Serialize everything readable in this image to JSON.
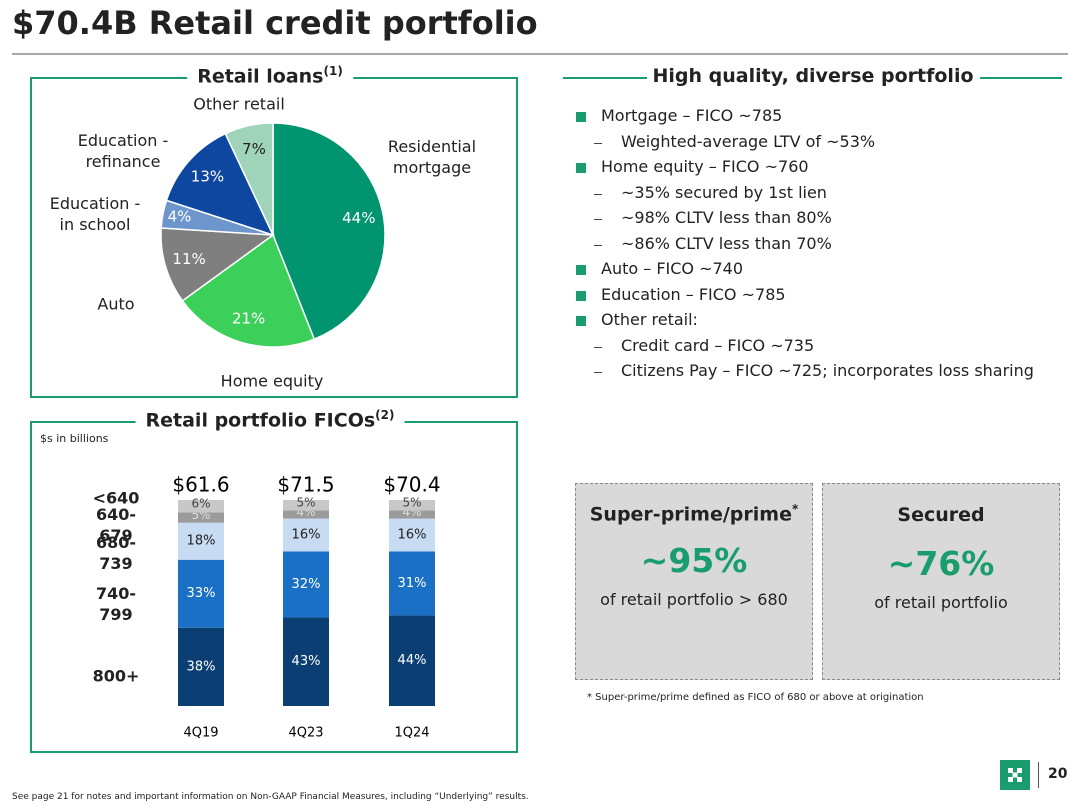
{
  "header": {
    "title": "$70.4B Retail credit portfolio"
  },
  "chart_data": [
    {
      "type": "pie",
      "title": "Retail loans",
      "title_note": "(1)",
      "categories": [
        "Residential mortgage",
        "Home equity",
        "Auto",
        "Education - in school",
        "Education - refinance",
        "Other retail"
      ],
      "values": [
        44,
        21,
        11,
        4,
        13,
        7
      ],
      "value_labels": [
        "44%",
        "21%",
        "11%",
        "4%",
        "13%",
        "7%"
      ],
      "colors": [
        "#00956e",
        "#3ccf5a",
        "#7f7f7f",
        "#6c96cc",
        "#0d479f",
        "#9fd4bb"
      ]
    },
    {
      "type": "stacked_bar",
      "title": "Retail portfolio FICOs",
      "title_note": "(2)",
      "subtitle": "$s in billions",
      "categories": [
        "4Q19",
        "4Q23",
        "1Q24"
      ],
      "totals": {
        "values": [
          61.6,
          71.5,
          70.4
        ],
        "value_labels": [
          "$61.6",
          "$71.5",
          "$70.4"
        ]
      },
      "series": [
        {
          "name": "800+",
          "color": "#0b3f73",
          "values": [
            38,
            43,
            44
          ],
          "value_labels": [
            "38%",
            "43%",
            "44%"
          ]
        },
        {
          "name": "740-799",
          "color": "#1a70c4",
          "values": [
            33,
            32,
            31
          ],
          "value_labels": [
            "33%",
            "32%",
            "31%"
          ]
        },
        {
          "name": "680-739",
          "color": "#c7dbf2",
          "values": [
            18,
            16,
            16
          ],
          "value_labels": [
            "18%",
            "16%",
            "16%"
          ]
        },
        {
          "name": "640-679",
          "color": "#9b9b9b",
          "values": [
            5,
            4,
            4
          ],
          "value_labels": [
            "5%",
            "4%",
            "4%"
          ]
        },
        {
          "name": "<640",
          "color": "#c8c8c8",
          "values": [
            6,
            5,
            5
          ],
          "value_labels": [
            "6%",
            "5%",
            "5%"
          ]
        }
      ]
    }
  ],
  "highlights": {
    "title": "High quality, diverse portfolio",
    "items": [
      {
        "text": "Mortgage – FICO ~785",
        "subitems": [
          "Weighted-average LTV of ~53%"
        ]
      },
      {
        "text": "Home equity – FICO ~760",
        "subitems": [
          "~35% secured by 1st lien",
          "~98% CLTV less than 80%",
          "~86% CLTV less than 70%"
        ]
      },
      {
        "text": "Auto – FICO ~740",
        "subitems": []
      },
      {
        "text": "Education – FICO ~785",
        "subitems": []
      },
      {
        "text": "Other retail:",
        "subitems": [
          "Credit card – FICO ~735",
          "Citizens Pay – FICO ~725; incorporates loss sharing"
        ]
      }
    ]
  },
  "stats": [
    {
      "title": "Super-prime/prime",
      "title_note": "*",
      "value": "~95%",
      "caption": "of retail portfolio > 680"
    },
    {
      "title": "Secured",
      "value": "~76%",
      "caption": "of retail portfolio"
    }
  ],
  "footnote": "* Super-prime/prime defined as FICO of 680 or above at origination",
  "footer": {
    "disclaimer": "See page 21 for notes and important information on Non-GAAP Financial Measures, including “Underlying” results.",
    "page": "20"
  }
}
